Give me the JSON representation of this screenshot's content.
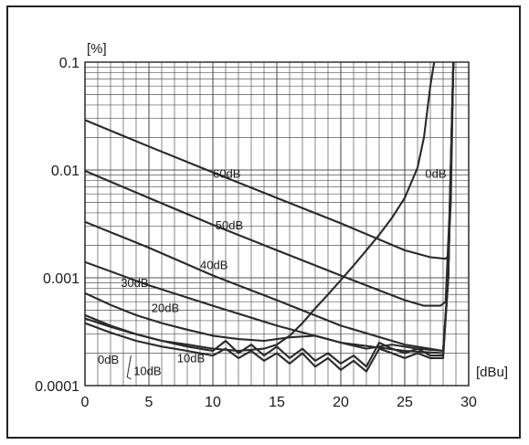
{
  "chart_data": {
    "type": "line",
    "xlabel": "[dBu]",
    "ylabel": "[%]",
    "x_scale": "linear",
    "y_scale": "log",
    "xlim": [
      0,
      30
    ],
    "ylim": [
      0.0001,
      0.1
    ],
    "x_ticks": [
      "0",
      "5",
      "10",
      "15",
      "20",
      "25",
      "30"
    ],
    "y_ticks": [
      {
        "value": 0.1,
        "label": "0.1"
      },
      {
        "value": 0.01,
        "label": "0.01"
      },
      {
        "value": 0.001,
        "label": "0.001"
      },
      {
        "value": 0.0001,
        "label": "0.0001"
      }
    ],
    "grid": true,
    "series": [
      {
        "name": "60dB",
        "label_at": [
          10.0,
          0.0085
        ],
        "x": [
          0,
          5,
          10,
          15,
          20,
          25,
          27,
          28.2,
          28.4,
          28.6,
          28.8
        ],
        "y": [
          0.029,
          0.0165,
          0.0095,
          0.0055,
          0.0032,
          0.0018,
          0.00155,
          0.0015,
          0.0016,
          0.005,
          0.1
        ]
      },
      {
        "name": "50dB",
        "label_at": [
          10.2,
          0.0028
        ],
        "x": [
          0,
          5,
          10,
          15,
          20,
          25,
          26.5,
          27.8,
          28.2,
          28.5,
          28.8
        ],
        "y": [
          0.0098,
          0.0055,
          0.0031,
          0.0018,
          0.00105,
          0.00062,
          0.00055,
          0.00055,
          0.0006,
          0.004,
          0.1
        ]
      },
      {
        "name": "40dB",
        "label_at": [
          9.0,
          0.0012
        ],
        "x": [
          0,
          5,
          10,
          15,
          20,
          25,
          28.0,
          28.4,
          28.8
        ],
        "y": [
          0.0033,
          0.0019,
          0.00105,
          0.00062,
          0.00036,
          0.00024,
          0.00021,
          0.001,
          0.1
        ]
      },
      {
        "name": "30dB",
        "label_at": [
          2.8,
          0.00082
        ],
        "x": [
          0,
          5,
          10,
          15,
          20,
          25,
          28.0,
          28.4,
          28.8
        ],
        "y": [
          0.0014,
          0.00085,
          0.00055,
          0.00036,
          0.00025,
          0.00021,
          0.0002,
          0.001,
          0.1
        ]
      },
      {
        "name": "20dB",
        "label_at": [
          5.2,
          0.00048
        ],
        "x": [
          0,
          2,
          4,
          6,
          8,
          10,
          12,
          14,
          16,
          18,
          20,
          22,
          24,
          26,
          28.0,
          28.4,
          28.8
        ],
        "y": [
          0.00072,
          0.00056,
          0.00045,
          0.00038,
          0.00033,
          0.00029,
          0.00027,
          0.00026,
          0.00028,
          0.00029,
          0.00025,
          0.00022,
          0.00024,
          0.00022,
          0.00021,
          0.001,
          0.1
        ]
      },
      {
        "name": "10dB",
        "label_at": [
          7.2,
          0.000165
        ],
        "x": [
          0,
          2,
          4,
          6,
          8,
          10,
          11,
          12,
          13,
          14,
          15,
          16,
          17,
          18,
          19,
          20,
          21,
          22,
          23,
          24,
          25,
          26,
          27,
          28.0,
          28.4,
          28.8
        ],
        "y": [
          0.00045,
          0.00036,
          0.0003,
          0.00026,
          0.00023,
          0.00021,
          0.00026,
          0.0002,
          0.00024,
          0.00019,
          0.00023,
          0.00018,
          0.00022,
          0.00017,
          0.0002,
          0.00016,
          0.00019,
          0.00015,
          0.00025,
          0.00022,
          0.0002,
          0.00022,
          0.00019,
          0.00019,
          0.001,
          0.1
        ]
      },
      {
        "name": "0dB",
        "label_at": [
          26.6,
          0.0085
        ],
        "x": [
          0,
          2,
          4,
          6,
          8,
          10,
          12,
          14,
          15,
          16,
          17,
          18,
          19,
          20,
          21,
          22,
          23,
          24,
          25,
          26,
          26.5,
          27.0,
          27.3
        ],
        "y": [
          0.00042,
          0.00035,
          0.0003,
          0.00026,
          0.00024,
          0.00022,
          0.00021,
          0.00022,
          0.00024,
          0.00029,
          0.00038,
          0.00052,
          0.0007,
          0.00095,
          0.0013,
          0.0018,
          0.0025,
          0.0036,
          0.0055,
          0.0105,
          0.02,
          0.06,
          0.1
        ]
      },
      {
        "name": "",
        "label_at": null,
        "x": [
          0,
          2,
          4,
          6,
          8,
          10,
          11,
          12,
          13,
          14,
          15,
          16,
          17,
          18,
          19,
          20,
          21,
          22,
          23,
          24,
          25,
          26,
          27,
          28.0,
          28.4,
          28.8
        ],
        "y": [
          0.00038,
          0.00031,
          0.00026,
          0.00023,
          0.00021,
          0.00019,
          0.00022,
          0.00018,
          0.00021,
          0.00017,
          0.0002,
          0.00016,
          0.0002,
          0.00015,
          0.00018,
          0.00014,
          0.00017,
          0.000135,
          0.00022,
          0.0002,
          0.00018,
          0.0002,
          0.00018,
          0.00018,
          0.001,
          0.1
        ]
      }
    ],
    "annotations": [
      {
        "text": "0dB",
        "at": [
          1.0,
          0.00016
        ]
      },
      {
        "text": "10dB",
        "at": [
          3.8,
          0.000125
        ]
      }
    ]
  }
}
